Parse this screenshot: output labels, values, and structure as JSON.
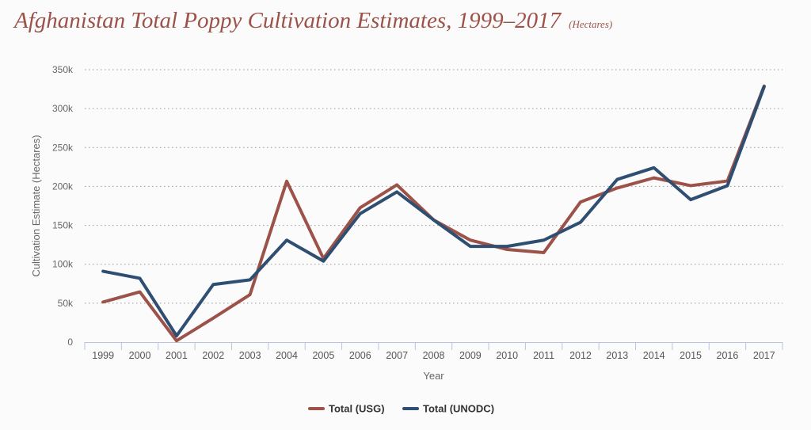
{
  "header": {
    "title": "Afghanistan Total Poppy Cultivation Estimates, 1999–2017",
    "unit_note": "(Hectares)"
  },
  "chart_data": {
    "type": "line",
    "title": "Afghanistan Total Poppy Cultivation Estimates, 1999–2017",
    "subtitle": "(Hectares)",
    "xlabel": "Year",
    "ylabel": "Cultivation Estimate (Hectares)",
    "ylim": [
      0,
      350000
    ],
    "yticks": [
      {
        "value": 0,
        "label": "0"
      },
      {
        "value": 50000,
        "label": "50k"
      },
      {
        "value": 100000,
        "label": "100k"
      },
      {
        "value": 150000,
        "label": "150k"
      },
      {
        "value": 200000,
        "label": "200k"
      },
      {
        "value": 250000,
        "label": "250k"
      },
      {
        "value": 300000,
        "label": "300k"
      },
      {
        "value": 350000,
        "label": "350k"
      }
    ],
    "grid": true,
    "legend_position": "bottom-center",
    "categories": [
      "1999",
      "2000",
      "2001",
      "2002",
      "2003",
      "2004",
      "2005",
      "2006",
      "2007",
      "2008",
      "2009",
      "2010",
      "2011",
      "2012",
      "2013",
      "2014",
      "2015",
      "2016",
      "2017"
    ],
    "series": [
      {
        "name": "Total (USG)",
        "color": "#9c5248",
        "values": [
          51500,
          64500,
          1700,
          30800,
          61000,
          206700,
          107400,
          172600,
          202000,
          157000,
          131000,
          119000,
          115000,
          180000,
          198000,
          211000,
          201000,
          207000,
          329000
        ]
      },
      {
        "name": "Total (UNODC)",
        "color": "#2e4e72",
        "values": [
          91000,
          82000,
          8000,
          74000,
          80000,
          131000,
          104000,
          165000,
          193000,
          157000,
          123000,
          123000,
          131000,
          154000,
          209000,
          224000,
          183000,
          201000,
          328000
        ]
      }
    ]
  }
}
